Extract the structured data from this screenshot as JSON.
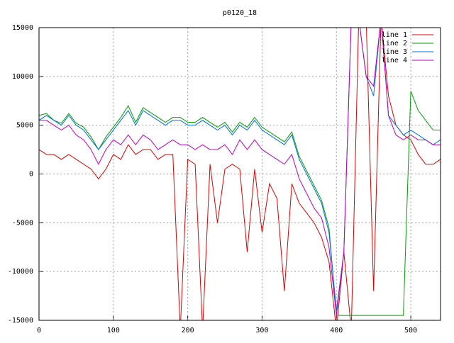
{
  "chart_data": {
    "type": "line",
    "title": "p0120_18",
    "x": [
      0,
      10,
      20,
      30,
      40,
      50,
      60,
      70,
      80,
      90,
      100,
      110,
      120,
      130,
      140,
      150,
      160,
      170,
      180,
      190,
      200,
      210,
      220,
      230,
      240,
      250,
      260,
      270,
      280,
      290,
      300,
      310,
      320,
      330,
      340,
      350,
      360,
      370,
      380,
      390,
      400,
      410,
      420,
      430,
      440,
      450,
      460,
      470,
      480,
      490,
      500,
      510,
      520,
      530,
      540
    ],
    "series": [
      {
        "name": "line 1",
        "color": "#e00000",
        "values": [
          2500,
          2000,
          2000,
          1500,
          2000,
          1500,
          1000,
          500,
          -500,
          500,
          2000,
          1500,
          3000,
          2000,
          2500,
          2500,
          1500,
          2000,
          2000,
          -16000,
          1500,
          1000,
          -16000,
          1000,
          -5000,
          500,
          1000,
          500,
          -8000,
          500,
          -6000,
          -1000,
          -2500,
          -12000,
          -1000,
          -3000,
          -4000,
          -5000,
          -6500,
          -9000,
          -16000,
          -8000,
          -16000,
          16000,
          16000,
          -12000,
          16000,
          8000,
          5000,
          4000,
          3500,
          2000,
          1000,
          1000,
          1500
        ]
      },
      {
        "name": "line 2",
        "color": "#00a000",
        "values": [
          6000,
          6200,
          5500,
          5200,
          6200,
          5200,
          4800,
          3800,
          2500,
          3800,
          4800,
          5800,
          7000,
          5300,
          6800,
          6300,
          5800,
          5300,
          5800,
          5800,
          5300,
          5300,
          5800,
          5300,
          4800,
          5300,
          4300,
          5300,
          4800,
          5800,
          4800,
          4300,
          3800,
          3300,
          4300,
          1800,
          300,
          -1200,
          -2700,
          -5500,
          -14500,
          -14500,
          -14500,
          -14500,
          -14500,
          -14500,
          -14500,
          -14500,
          -14500,
          -14500,
          8500,
          6500,
          5500,
          4500,
          4500
        ]
      },
      {
        "name": "line 3",
        "color": "#0070e0",
        "values": [
          5500,
          6000,
          5500,
          5000,
          6000,
          5000,
          4500,
          3500,
          2500,
          3500,
          4500,
          5500,
          6500,
          5000,
          6500,
          6000,
          5500,
          5000,
          5500,
          5500,
          5000,
          5000,
          5500,
          5000,
          4500,
          5000,
          4000,
          5000,
          4500,
          5500,
          4500,
          4000,
          3500,
          3000,
          4000,
          1500,
          0,
          -1500,
          -3000,
          -6000,
          -14000,
          -8000,
          16000,
          16000,
          10000,
          8000,
          16000,
          6000,
          5000,
          4000,
          4500,
          4000,
          3500,
          3000,
          3500
        ]
      },
      {
        "name": "line 4",
        "color": "#c000c0",
        "values": [
          5500,
          5500,
          5000,
          4500,
          5000,
          4000,
          3500,
          2500,
          1000,
          2500,
          3500,
          3000,
          4000,
          3000,
          4000,
          3500,
          2500,
          3000,
          3500,
          3000,
          3000,
          2500,
          3000,
          2500,
          2500,
          3000,
          2000,
          3500,
          2500,
          3500,
          2500,
          2000,
          1500,
          1000,
          2000,
          -500,
          -2000,
          -3500,
          -4500,
          -7500,
          -14500,
          -8000,
          16000,
          16000,
          10000,
          9000,
          16000,
          6000,
          4000,
          3500,
          4000,
          3500,
          3500,
          3000,
          3000
        ]
      }
    ],
    "xlim": [
      0,
      540
    ],
    "ylim": [
      -15000,
      15000
    ],
    "xticks": [
      0,
      100,
      200,
      300,
      400,
      500
    ],
    "yticks": [
      -15000,
      -10000,
      -5000,
      0,
      5000,
      10000,
      15000
    ],
    "grid": true,
    "legend": "top-right"
  }
}
